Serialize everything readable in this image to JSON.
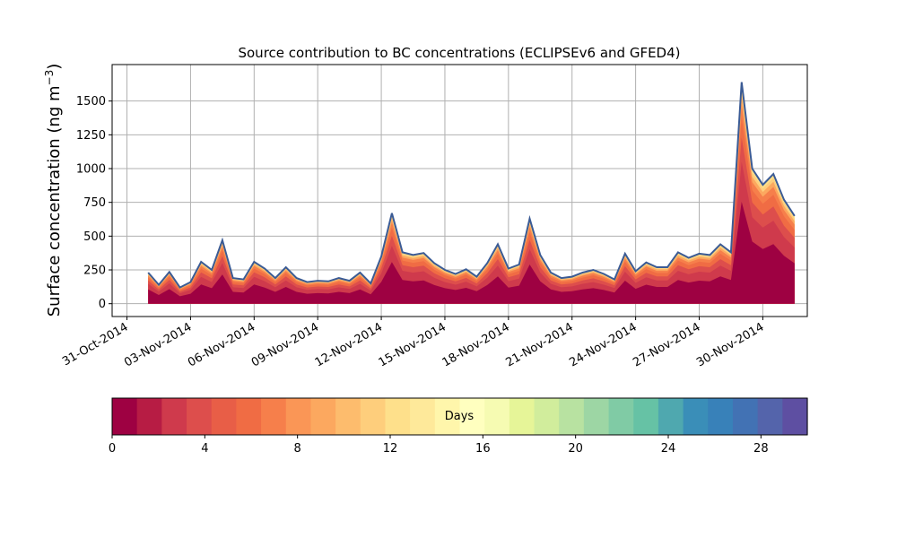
{
  "chart_data": {
    "type": "area",
    "title": "Source contribution to BC concentrations (ECLIPSEv6 and GFED4)",
    "ylabel": "Surface concentration (ng m⁻³)",
    "ylabel_main": "Surface concentration (ng m",
    "ylabel_sup": "−3",
    "ylabel_close": ")",
    "xlabel": "",
    "ylim": [
      -95,
      1770
    ],
    "xlim_days": [
      -0.7,
      32.1
    ],
    "grid": true,
    "x_ticks": [
      "31-Oct-2014",
      "03-Nov-2014",
      "06-Nov-2014",
      "09-Nov-2014",
      "12-Nov-2014",
      "15-Nov-2014",
      "18-Nov-2014",
      "21-Nov-2014",
      "24-Nov-2014",
      "27-Nov-2014",
      "30-Nov-2014"
    ],
    "y_ticks": [
      0,
      250,
      500,
      750,
      1000,
      1250,
      1500
    ],
    "total_series": {
      "name": "total",
      "x": [
        "01-Nov-2014 00:00",
        "01-Nov-2014 12:00",
        "02-Nov-2014 00:00",
        "02-Nov-2014 12:00",
        "03-Nov-2014 00:00",
        "03-Nov-2014 12:00",
        "04-Nov-2014 00:00",
        "04-Nov-2014 12:00",
        "05-Nov-2014 00:00",
        "05-Nov-2014 12:00",
        "06-Nov-2014 00:00",
        "06-Nov-2014 12:00",
        "07-Nov-2014 00:00",
        "07-Nov-2014 12:00",
        "08-Nov-2014 00:00",
        "08-Nov-2014 12:00",
        "09-Nov-2014 00:00",
        "09-Nov-2014 12:00",
        "10-Nov-2014 00:00",
        "10-Nov-2014 12:00",
        "11-Nov-2014 00:00",
        "11-Nov-2014 12:00",
        "12-Nov-2014 00:00",
        "12-Nov-2014 12:00",
        "13-Nov-2014 00:00",
        "13-Nov-2014 12:00",
        "14-Nov-2014 00:00",
        "14-Nov-2014 12:00",
        "15-Nov-2014 00:00",
        "15-Nov-2014 12:00",
        "16-Nov-2014 00:00",
        "16-Nov-2014 12:00",
        "17-Nov-2014 00:00",
        "17-Nov-2014 12:00",
        "18-Nov-2014 00:00",
        "18-Nov-2014 12:00",
        "19-Nov-2014 00:00",
        "19-Nov-2014 12:00",
        "20-Nov-2014 00:00",
        "20-Nov-2014 12:00",
        "21-Nov-2014 00:00",
        "21-Nov-2014 12:00",
        "22-Nov-2014 00:00",
        "22-Nov-2014 12:00",
        "23-Nov-2014 00:00",
        "23-Nov-2014 12:00",
        "24-Nov-2014 00:00",
        "24-Nov-2014 12:00",
        "25-Nov-2014 00:00",
        "25-Nov-2014 12:00",
        "26-Nov-2014 00:00",
        "26-Nov-2014 12:00",
        "27-Nov-2014 00:00",
        "27-Nov-2014 12:00",
        "28-Nov-2014 00:00",
        "28-Nov-2014 12:00",
        "29-Nov-2014 00:00",
        "29-Nov-2014 12:00",
        "30-Nov-2014 00:00",
        "30-Nov-2014 12:00",
        "01-Dec-2014 00:00",
        "01-Dec-2014 12:00"
      ],
      "values": [
        230,
        140,
        235,
        120,
        160,
        310,
        250,
        470,
        190,
        180,
        310,
        260,
        190,
        270,
        190,
        160,
        170,
        165,
        190,
        170,
        230,
        150,
        350,
        670,
        380,
        360,
        375,
        300,
        250,
        220,
        255,
        200,
        300,
        440,
        260,
        290,
        630,
        360,
        230,
        190,
        200,
        230,
        250,
        220,
        180,
        370,
        240,
        305,
        270,
        270,
        380,
        340,
        370,
        360,
        440,
        380,
        1640,
        1000,
        880,
        960,
        770,
        650
      ]
    },
    "layer_fractions": [
      0.46,
      0.64,
      0.75,
      0.84,
      0.9,
      0.94,
      0.97,
      0.99,
      1.0
    ],
    "colorbar": {
      "label": "Days",
      "min": 0,
      "max": 30,
      "ticks": [
        "0",
        "4",
        "8",
        "12",
        "16",
        "20",
        "24",
        "28"
      ],
      "colors": [
        "#9e0142",
        "#b71c44",
        "#cf3a4c",
        "#dd4e4c",
        "#e85e47",
        "#f06c44",
        "#f67f4b",
        "#fa9656",
        "#fca85f",
        "#fdbc6d",
        "#fece7c",
        "#fee08b",
        "#fee99a",
        "#fff6ab",
        "#ffffbf",
        "#f6fbb2",
        "#e6f598",
        "#d1ed9c",
        "#b8e2a1",
        "#9dd6a4",
        "#80cba5",
        "#66c2a5",
        "#4fa8af",
        "#3a8eb8",
        "#3881b9",
        "#4272b4",
        "#5464ab",
        "#5e4fa2"
      ]
    },
    "total_line_color": "#3b5b95"
  }
}
